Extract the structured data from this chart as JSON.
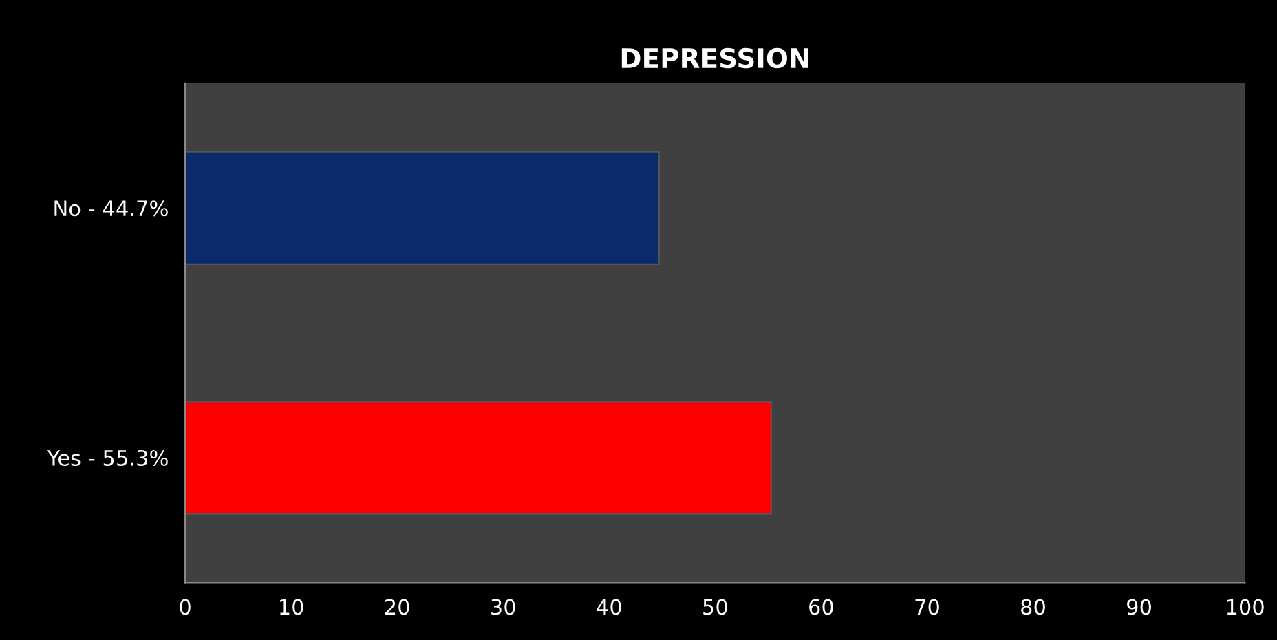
{
  "chart_data": {
    "type": "bar",
    "orientation": "horizontal",
    "title": "DEPRESSION",
    "categories": [
      "No - 44.7%",
      "Yes - 55.3%"
    ],
    "series": [
      {
        "values": [
          44.7,
          55.3
        ],
        "colors": [
          "#0b2a6b",
          "#ff0000"
        ]
      }
    ],
    "xlim": [
      0,
      100
    ],
    "xticks": [
      0,
      10,
      20,
      30,
      40,
      50,
      60,
      70,
      80,
      90,
      100
    ],
    "grid": false,
    "legend": false
  }
}
